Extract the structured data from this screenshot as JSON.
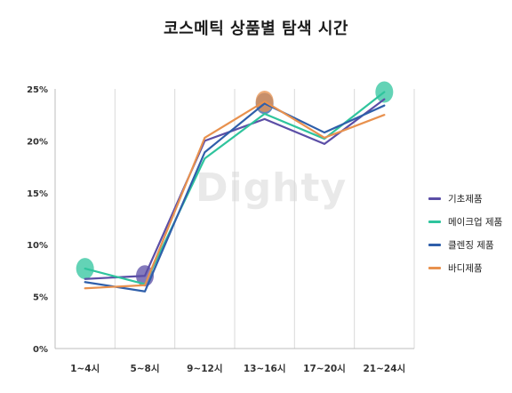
{
  "watermark": "Dighty",
  "chart_data": {
    "type": "line",
    "title": "코스메틱 상품별 탐색 시간",
    "categories": [
      "1~4시",
      "5~8시",
      "9~12시",
      "13~16시",
      "17~20시",
      "21~24시"
    ],
    "ylim": [
      0,
      25
    ],
    "yticks": [
      0,
      5,
      10,
      15,
      20,
      25
    ],
    "ytick_labels": [
      "0%",
      "5%",
      "10%",
      "15%",
      "20%",
      "25%"
    ],
    "grid": "vertical",
    "legend_position": "right",
    "series": [
      {
        "name": "기초제품",
        "color": "#5b4ea6",
        "values": [
          6.7,
          7.0,
          20.0,
          22.1,
          19.7,
          24.0
        ]
      },
      {
        "name": "메이크업 제품",
        "color": "#2fc49d",
        "values": [
          7.7,
          6.2,
          18.3,
          22.6,
          20.2,
          24.7
        ]
      },
      {
        "name": "클렌징 제품",
        "color": "#2f5faa",
        "values": [
          6.4,
          5.5,
          18.9,
          23.6,
          20.8,
          23.4
        ]
      },
      {
        "name": "바디제품",
        "color": "#e8914e",
        "values": [
          5.8,
          6.1,
          20.3,
          23.8,
          20.3,
          22.5
        ]
      }
    ],
    "highlights": [
      {
        "series": 1,
        "index": 0
      },
      {
        "series": 0,
        "index": 1
      },
      {
        "series": 2,
        "index": 3
      },
      {
        "series": 3,
        "index": 3
      },
      {
        "series": 1,
        "index": 5
      }
    ]
  }
}
